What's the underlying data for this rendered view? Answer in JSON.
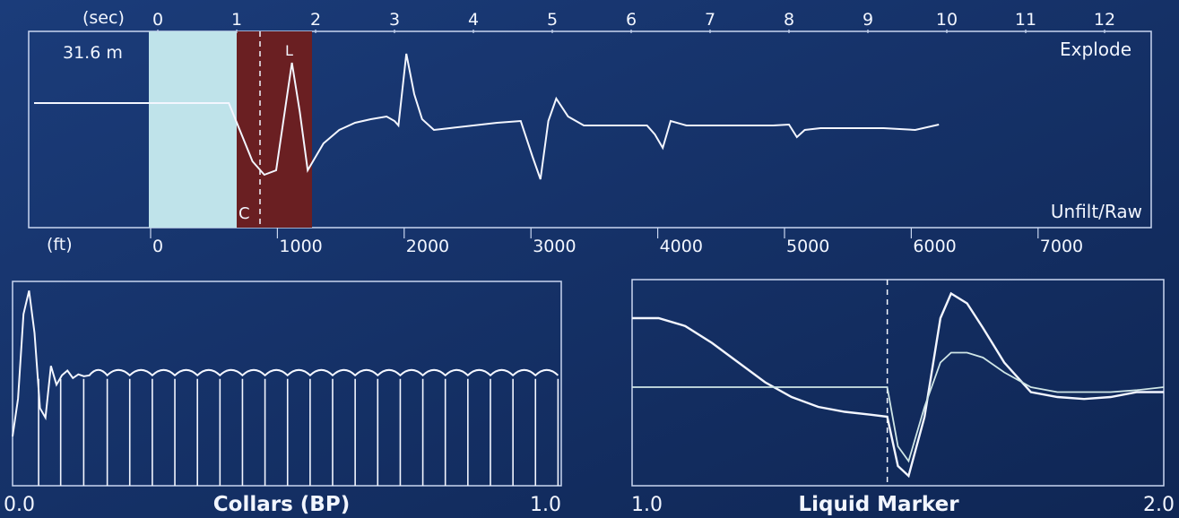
{
  "colors": {
    "background": "#1b3c7a",
    "background_dark": "#0f2654",
    "frame": "#c9d6f0",
    "trace": "#f3f6ff",
    "trace_secondary": "#cfe6e6",
    "highlight_cyan": "#bfe3ea",
    "highlight_maroon": "#6a1f22"
  },
  "top_panel": {
    "amplitude_readout": "31.6 m",
    "mode_label": "Explode",
    "filter_label": "Unfilt/Raw",
    "marker_c": "C",
    "marker_l": "L"
  },
  "chart_data": [
    {
      "type": "line",
      "id": "acoustic-trace",
      "x_axis_top": {
        "label": "(sec)",
        "ticks": [
          "0",
          "1",
          "2",
          "3",
          "4",
          "5",
          "6",
          "7",
          "8",
          "9",
          "10",
          "11",
          "12"
        ]
      },
      "x_axis_bottom": {
        "label": "(ft)",
        "ticks": [
          "0",
          "1000",
          "2000",
          "3000",
          "4000",
          "5000",
          "6000",
          "7000"
        ]
      },
      "xlim_sec": [
        0,
        12.5
      ],
      "ylim": [
        -1,
        1
      ],
      "grid": false,
      "series": [
        {
          "x": [
            0.0,
            0.3,
            0.6,
            0.9,
            1.2,
            1.35,
            1.5,
            1.6,
            1.7,
            1.8,
            1.9,
            2.0,
            2.1,
            2.3,
            2.5,
            2.7,
            2.9,
            3.0,
            3.05,
            3.15,
            3.25,
            3.35,
            3.5,
            3.7,
            4.0,
            4.3,
            4.6,
            4.75,
            4.85,
            4.95,
            5.05,
            5.2,
            5.4,
            5.7,
            6.0,
            6.2,
            6.3,
            6.4,
            6.5,
            6.7,
            7.0,
            7.5,
            7.8,
            8.0,
            8.1,
            8.2,
            8.4,
            8.8,
            9.2,
            9.6,
            9.9
          ],
          "y": [
            0.3,
            0.3,
            0.3,
            0.3,
            -0.35,
            -0.5,
            -0.45,
            0.15,
            0.75,
            0.2,
            -0.45,
            -0.3,
            -0.15,
            0.0,
            0.08,
            0.12,
            0.15,
            0.1,
            0.05,
            0.85,
            0.4,
            0.12,
            0.0,
            0.02,
            0.05,
            0.08,
            0.1,
            -0.3,
            -0.55,
            0.1,
            0.35,
            0.15,
            0.05,
            0.05,
            0.05,
            0.05,
            -0.05,
            -0.2,
            0.1,
            0.05,
            0.05,
            0.05,
            0.05,
            0.06,
            -0.08,
            0.0,
            0.02,
            0.02,
            0.02,
            0.0,
            0.06
          ]
        }
      ]
    },
    {
      "type": "line",
      "id": "collars-plot",
      "title": "Collars (BP)",
      "xlim": [
        0.0,
        1.0
      ],
      "x_tick_labels": [
        "0.0",
        "1.0"
      ],
      "ylim": [
        -1,
        1
      ],
      "grid": false,
      "collar_marks": [
        0.0475,
        0.0877,
        0.1297,
        0.1726,
        0.2136,
        0.2547,
        0.2958,
        0.3369,
        0.378,
        0.419,
        0.4601,
        0.5012,
        0.5423,
        0.5833,
        0.6244,
        0.6655,
        0.7066,
        0.7477,
        0.7887,
        0.8298,
        0.8709,
        0.912,
        0.953,
        0.9941
      ],
      "series": [
        {
          "x": [
            0.0,
            0.01,
            0.02,
            0.03,
            0.04,
            0.05,
            0.06,
            0.07,
            0.08,
            0.09,
            0.1,
            0.11,
            0.12,
            0.13,
            0.14
          ],
          "y": [
            -0.6,
            -0.2,
            0.7,
            0.95,
            0.5,
            -0.3,
            -0.4,
            0.15,
            -0.05,
            0.05,
            0.1,
            0.02,
            0.06,
            0.04,
            0.05
          ]
        }
      ]
    },
    {
      "type": "line",
      "id": "liquid-marker-plot",
      "title": "Liquid Marker",
      "xlim": [
        1.0,
        2.0
      ],
      "x_tick_labels": [
        "1.0",
        "2.0"
      ],
      "ylim": [
        -1,
        1
      ],
      "grid": false,
      "marker_x": 1.48,
      "series": [
        {
          "x": [
            1.0,
            1.05,
            1.1,
            1.15,
            1.2,
            1.25,
            1.3,
            1.35,
            1.4,
            1.45,
            1.48,
            1.5,
            1.52,
            1.55,
            1.58,
            1.6,
            1.63,
            1.66,
            1.7,
            1.75,
            1.8,
            1.85,
            1.9,
            1.95,
            2.0
          ],
          "y": [
            0.7,
            0.7,
            0.62,
            0.45,
            0.25,
            0.05,
            -0.1,
            -0.2,
            -0.25,
            -0.28,
            -0.3,
            -0.8,
            -0.9,
            -0.3,
            0.7,
            0.95,
            0.85,
            0.6,
            0.25,
            -0.05,
            -0.1,
            -0.12,
            -0.1,
            -0.05,
            -0.05
          ]
        },
        {
          "x": [
            1.0,
            1.1,
            1.2,
            1.3,
            1.4,
            1.48,
            1.5,
            1.52,
            1.55,
            1.58,
            1.6,
            1.63,
            1.66,
            1.7,
            1.75,
            1.8,
            1.85,
            1.9,
            1.95,
            2.0
          ],
          "y": [
            0.0,
            0.0,
            0.0,
            0.0,
            0.0,
            0.0,
            -0.6,
            -0.75,
            -0.2,
            0.25,
            0.35,
            0.35,
            0.3,
            0.15,
            0.0,
            -0.05,
            -0.05,
            -0.05,
            -0.03,
            0.0
          ]
        }
      ]
    }
  ]
}
